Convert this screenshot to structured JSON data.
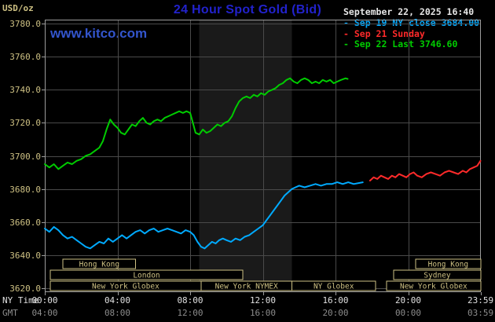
{
  "header": {
    "units": "USD/oz",
    "title": "24 Hour Spot Gold (Bid)",
    "datetime": "September 22, 2025 16:40",
    "watermark": "www.kitco.com",
    "legend": [
      {
        "marker": "-",
        "label": "Sep 19 NY close 3684.00",
        "color": "#00aaff"
      },
      {
        "marker": "-",
        "label": "Sep 21 Sunday",
        "color": "#ff2a2a"
      },
      {
        "marker": "-",
        "label": "Sep 22 Last 3746.60",
        "color": "#00cc00"
      }
    ]
  },
  "axes": {
    "ny_label": "NY Time",
    "gmt_label": "GMT",
    "tick_hours": [
      0,
      4,
      8,
      12,
      16,
      20,
      23.983
    ],
    "ny_ticks": [
      "00:00",
      "04:00",
      "08:00",
      "12:00",
      "16:00",
      "20:00",
      "23:59"
    ],
    "gmt_ticks": [
      "04:00",
      "08:00",
      "12:00",
      "16:00",
      "20:00",
      "00:00",
      "03:59"
    ],
    "y_ticks": [
      "3780.0",
      "3760.0",
      "3740.0",
      "3720.0",
      "3700.0",
      "3680.0",
      "3660.0",
      "3640.0",
      "3620.0"
    ]
  },
  "sessions": {
    "boxes": [
      {
        "row": 0,
        "start": 1.0,
        "end": 5.0,
        "label": "Hong Kong"
      },
      {
        "row": 0,
        "start": 20.4,
        "end": 24,
        "label": "Hong Kong"
      },
      {
        "row": 1,
        "start": 0.3,
        "end": 10.9,
        "label": "London"
      },
      {
        "row": 1,
        "start": 19.2,
        "end": 24,
        "label": "Sydney"
      },
      {
        "row": 2,
        "start": 0.3,
        "end": 8.6,
        "label": "New York Globex"
      },
      {
        "row": 2,
        "start": 8.6,
        "end": 13.6,
        "label": "New York NYMEX"
      },
      {
        "row": 2,
        "start": 13.6,
        "end": 18.2,
        "label": "NY Globex"
      },
      {
        "row": 2,
        "start": 18.8,
        "end": 24,
        "label": "New York Globex"
      }
    ]
  },
  "colors": {
    "background": "#000000",
    "grid": "#4a4a4a",
    "border": "#9c9c9c",
    "axis_text": "#cdc083",
    "title": "#2222cc",
    "watermark": "#3355cc",
    "datetime": "#e6e6e6",
    "ny_ticks": "#e0e0e0",
    "gmt_ticks": "#8c8c8c",
    "session": "#cdc083",
    "band": "#1a1a1a"
  },
  "chart_data": {
    "type": "line",
    "title": "24 Hour Spot Gold (Bid)",
    "x_label": "NY Time (hours)",
    "y_label": "USD/oz",
    "x_range": [
      0,
      24
    ],
    "y_range": [
      3620,
      3780
    ],
    "y_tick_step": 20,
    "grid": true,
    "legend_position": "top-right",
    "nymex_band_hours": [
      8.5,
      13.6
    ],
    "series": [
      {
        "name": "Sep 19 NY close",
        "close": 3684.0,
        "color": "#00aaff",
        "points": [
          [
            0,
            3656
          ],
          [
            0.25,
            3654
          ],
          [
            0.5,
            3657
          ],
          [
            0.75,
            3655
          ],
          [
            1,
            3652
          ],
          [
            1.25,
            3650
          ],
          [
            1.5,
            3651
          ],
          [
            1.75,
            3649
          ],
          [
            2,
            3647
          ],
          [
            2.25,
            3645
          ],
          [
            2.5,
            3644
          ],
          [
            2.75,
            3646
          ],
          [
            3,
            3648
          ],
          [
            3.25,
            3647
          ],
          [
            3.5,
            3650
          ],
          [
            3.75,
            3648
          ],
          [
            4,
            3650
          ],
          [
            4.25,
            3652
          ],
          [
            4.5,
            3650
          ],
          [
            4.75,
            3652
          ],
          [
            5,
            3654
          ],
          [
            5.25,
            3655
          ],
          [
            5.5,
            3653
          ],
          [
            5.75,
            3655
          ],
          [
            6,
            3656
          ],
          [
            6.25,
            3654
          ],
          [
            6.5,
            3655
          ],
          [
            6.75,
            3656
          ],
          [
            7,
            3655
          ],
          [
            7.25,
            3654
          ],
          [
            7.5,
            3653
          ],
          [
            7.75,
            3655
          ],
          [
            8,
            3654
          ],
          [
            8.2,
            3652
          ],
          [
            8.4,
            3648
          ],
          [
            8.6,
            3645
          ],
          [
            8.8,
            3644
          ],
          [
            9,
            3646
          ],
          [
            9.2,
            3648
          ],
          [
            9.4,
            3647
          ],
          [
            9.6,
            3649
          ],
          [
            9.8,
            3650
          ],
          [
            10,
            3649
          ],
          [
            10.25,
            3648
          ],
          [
            10.5,
            3650
          ],
          [
            10.75,
            3649
          ],
          [
            11,
            3651
          ],
          [
            11.25,
            3652
          ],
          [
            11.5,
            3654
          ],
          [
            11.75,
            3656
          ],
          [
            12,
            3658
          ],
          [
            12.2,
            3661
          ],
          [
            12.4,
            3664
          ],
          [
            12.6,
            3667
          ],
          [
            12.8,
            3670
          ],
          [
            13,
            3673
          ],
          [
            13.2,
            3676
          ],
          [
            13.4,
            3678
          ],
          [
            13.6,
            3680
          ],
          [
            13.8,
            3681
          ],
          [
            14,
            3682
          ],
          [
            14.3,
            3681
          ],
          [
            14.6,
            3682
          ],
          [
            14.9,
            3683
          ],
          [
            15.2,
            3682
          ],
          [
            15.5,
            3683
          ],
          [
            15.8,
            3683
          ],
          [
            16.1,
            3684
          ],
          [
            16.4,
            3683
          ],
          [
            16.7,
            3684
          ],
          [
            17,
            3683
          ],
          [
            17.5,
            3684
          ]
        ]
      },
      {
        "name": "Sep 21 Sunday",
        "color": "#ff2a2a",
        "points": [
          [
            17.9,
            3685
          ],
          [
            18.1,
            3687
          ],
          [
            18.3,
            3686
          ],
          [
            18.5,
            3688
          ],
          [
            18.7,
            3687
          ],
          [
            18.9,
            3686
          ],
          [
            19.1,
            3688
          ],
          [
            19.3,
            3687
          ],
          [
            19.5,
            3689
          ],
          [
            19.7,
            3688
          ],
          [
            19.9,
            3687
          ],
          [
            20.1,
            3689
          ],
          [
            20.3,
            3690
          ],
          [
            20.5,
            3688
          ],
          [
            20.75,
            3687
          ],
          [
            21,
            3689
          ],
          [
            21.25,
            3690
          ],
          [
            21.5,
            3689
          ],
          [
            21.75,
            3688
          ],
          [
            22,
            3690
          ],
          [
            22.25,
            3691
          ],
          [
            22.5,
            3690
          ],
          [
            22.75,
            3689
          ],
          [
            23,
            3691
          ],
          [
            23.2,
            3690
          ],
          [
            23.4,
            3692
          ],
          [
            23.6,
            3693
          ],
          [
            23.8,
            3694
          ],
          [
            23.98,
            3697
          ]
        ]
      },
      {
        "name": "Sep 22 Last",
        "last": 3746.6,
        "color": "#00cc00",
        "points": [
          [
            0,
            3695
          ],
          [
            0.25,
            3693
          ],
          [
            0.5,
            3695
          ],
          [
            0.75,
            3692
          ],
          [
            1,
            3694
          ],
          [
            1.25,
            3696
          ],
          [
            1.5,
            3695
          ],
          [
            1.75,
            3697
          ],
          [
            2,
            3698
          ],
          [
            2.25,
            3700
          ],
          [
            2.5,
            3701
          ],
          [
            2.75,
            3703
          ],
          [
            3,
            3705
          ],
          [
            3.2,
            3709
          ],
          [
            3.4,
            3716
          ],
          [
            3.6,
            3722
          ],
          [
            3.8,
            3719
          ],
          [
            4,
            3717
          ],
          [
            4.2,
            3714
          ],
          [
            4.4,
            3713
          ],
          [
            4.6,
            3716
          ],
          [
            4.8,
            3719
          ],
          [
            5,
            3718
          ],
          [
            5.2,
            3721
          ],
          [
            5.4,
            3723
          ],
          [
            5.6,
            3720
          ],
          [
            5.8,
            3719
          ],
          [
            6,
            3721
          ],
          [
            6.2,
            3722
          ],
          [
            6.4,
            3721
          ],
          [
            6.6,
            3723
          ],
          [
            6.8,
            3724
          ],
          [
            7,
            3725
          ],
          [
            7.2,
            3726
          ],
          [
            7.4,
            3727
          ],
          [
            7.6,
            3726
          ],
          [
            7.8,
            3727
          ],
          [
            8,
            3726
          ],
          [
            8.15,
            3720
          ],
          [
            8.3,
            3714
          ],
          [
            8.5,
            3713
          ],
          [
            8.7,
            3716
          ],
          [
            8.9,
            3714
          ],
          [
            9.1,
            3715
          ],
          [
            9.3,
            3717
          ],
          [
            9.5,
            3719
          ],
          [
            9.7,
            3718
          ],
          [
            9.9,
            3720
          ],
          [
            10.1,
            3721
          ],
          [
            10.3,
            3724
          ],
          [
            10.5,
            3729
          ],
          [
            10.7,
            3733
          ],
          [
            10.9,
            3735
          ],
          [
            11.1,
            3736
          ],
          [
            11.3,
            3735
          ],
          [
            11.5,
            3737
          ],
          [
            11.7,
            3736
          ],
          [
            11.9,
            3738
          ],
          [
            12.1,
            3737
          ],
          [
            12.3,
            3739
          ],
          [
            12.5,
            3740
          ],
          [
            12.7,
            3741
          ],
          [
            12.9,
            3743
          ],
          [
            13.1,
            3744
          ],
          [
            13.3,
            3746
          ],
          [
            13.5,
            3747
          ],
          [
            13.7,
            3745
          ],
          [
            13.9,
            3744
          ],
          [
            14.1,
            3746
          ],
          [
            14.3,
            3747
          ],
          [
            14.5,
            3746
          ],
          [
            14.7,
            3744
          ],
          [
            14.9,
            3745
          ],
          [
            15.1,
            3744
          ],
          [
            15.3,
            3746
          ],
          [
            15.5,
            3745
          ],
          [
            15.7,
            3746
          ],
          [
            15.9,
            3744
          ],
          [
            16.1,
            3745
          ],
          [
            16.3,
            3746
          ],
          [
            16.55,
            3747
          ],
          [
            16.67,
            3746.6
          ]
        ]
      }
    ]
  }
}
